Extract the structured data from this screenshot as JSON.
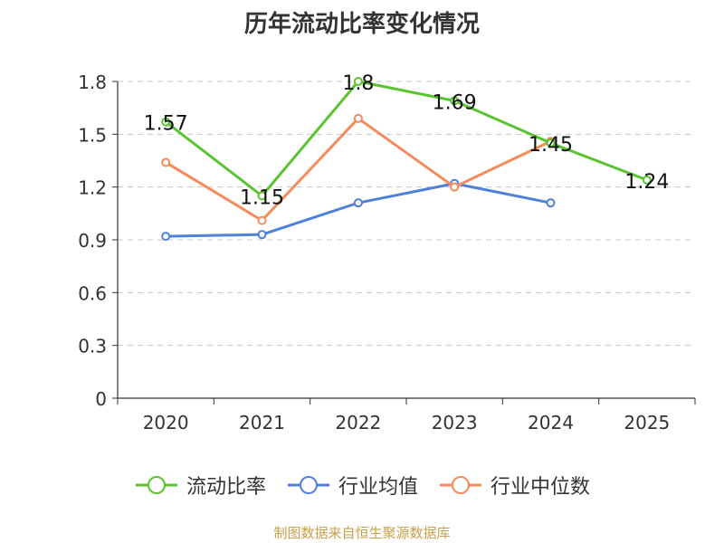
{
  "title": "历年流动比率变化情况",
  "source": "制图数据来自恒生聚源数据库",
  "chart_data": {
    "type": "line",
    "categories": [
      "2020",
      "2021",
      "2022",
      "2023",
      "2024",
      "2025"
    ],
    "ylim": [
      0,
      1.8
    ],
    "yticks": [
      "0",
      "0.3",
      "0.6",
      "0.9",
      "1.2",
      "1.5",
      "1.8"
    ],
    "grid": true,
    "legend_position": "bottom",
    "series": [
      {
        "name": "流动比率",
        "color": "#5bc230",
        "values": [
          1.57,
          1.15,
          1.8,
          1.69,
          1.45,
          1.24
        ],
        "labels": [
          "1.57",
          "1.15",
          "1.8",
          "1.69",
          "1.45",
          "1.24"
        ]
      },
      {
        "name": "行业均值",
        "color": "#4f81d8",
        "values": [
          0.92,
          0.93,
          1.11,
          1.22,
          1.11,
          null
        ]
      },
      {
        "name": "行业中位数",
        "color": "#f58b5a",
        "values": [
          1.34,
          1.01,
          1.59,
          1.2,
          1.46,
          null
        ]
      }
    ]
  }
}
